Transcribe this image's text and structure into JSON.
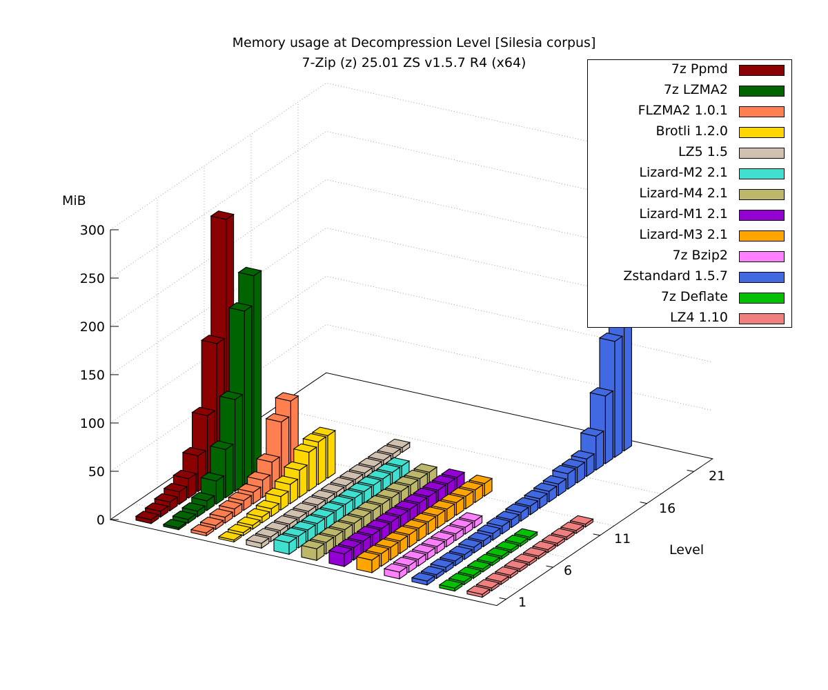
{
  "chart_data": {
    "type": "bar3d",
    "title": "Memory usage at Decompression Level [Silesia corpus]",
    "subtitle": "7-Zip (z) 25.01 ZS v1.5.7 R4 (x64)",
    "zlabel": "MiB",
    "ylabel": "Level",
    "zlim": [
      0,
      300
    ],
    "z_ticks": [
      0,
      50,
      100,
      150,
      200,
      250,
      300
    ],
    "level_ticks": [
      1,
      6,
      11,
      16,
      21
    ],
    "grid": true,
    "legend_position": "top-right",
    "series": [
      {
        "name": "7z Ppmd",
        "color": "#8b0000",
        "levels": [
          1,
          2,
          3,
          4,
          5,
          6,
          7,
          8,
          9
        ],
        "values": [
          4,
          6,
          9,
          13,
          20,
          37,
          72,
          140,
          262
        ]
      },
      {
        "name": "7z LZMA2",
        "color": "#006400",
        "levels": [
          1,
          2,
          3,
          4,
          5,
          6,
          7,
          8,
          9
        ],
        "values": [
          2,
          4,
          6,
          10,
          24,
          50,
          95,
          180,
          210
        ]
      },
      {
        "name": "FLZMA2 1.0.1",
        "color": "#ff7f50",
        "levels": [
          1,
          2,
          3,
          4,
          5,
          6,
          7,
          8,
          9,
          10
        ],
        "values": [
          3,
          4,
          6,
          8,
          10,
          12,
          18,
          30,
          65,
          80
        ]
      },
      {
        "name": "Brotli 1.2.0",
        "color": "#ffd700",
        "levels": [
          1,
          2,
          3,
          4,
          5,
          6,
          7,
          8,
          9,
          10,
          11
        ],
        "values": [
          2,
          3,
          4,
          6,
          8,
          14,
          20,
          28,
          40,
          44,
          44
        ]
      },
      {
        "name": "LZ5 1.5",
        "color": "#d0c0b0",
        "levels": [
          1,
          2,
          3,
          4,
          5,
          6,
          7,
          8,
          9,
          10,
          11,
          12,
          13,
          14,
          15,
          16
        ],
        "values": [
          5,
          5,
          5,
          5,
          5,
          5,
          5,
          5,
          5,
          5,
          5,
          5,
          5,
          5,
          5,
          5
        ]
      },
      {
        "name": "Lizard-M2 2.1",
        "color": "#40e0d0",
        "levels": [
          1,
          2,
          3,
          4,
          5,
          6,
          7,
          8,
          9,
          10,
          11,
          12,
          13
        ],
        "values": [
          12,
          12,
          12,
          12,
          12,
          12,
          12,
          12,
          12,
          12,
          12,
          12,
          12
        ]
      },
      {
        "name": "Lizard-M4 2.1",
        "color": "#bdb76b",
        "levels": [
          1,
          2,
          3,
          4,
          5,
          6,
          7,
          8,
          9,
          10,
          11,
          12,
          13
        ],
        "values": [
          12,
          12,
          12,
          12,
          12,
          12,
          12,
          12,
          12,
          12,
          12,
          12,
          12
        ]
      },
      {
        "name": "Lizard-M1 2.1",
        "color": "#9400d3",
        "levels": [
          1,
          2,
          3,
          4,
          5,
          6,
          7,
          8,
          9,
          10,
          11,
          12,
          13
        ],
        "values": [
          13,
          13,
          13,
          13,
          13,
          13,
          13,
          13,
          13,
          13,
          13,
          13,
          13
        ]
      },
      {
        "name": "Lizard-M3 2.1",
        "color": "#ffa500",
        "levels": [
          1,
          2,
          3,
          4,
          5,
          6,
          7,
          8,
          9,
          10,
          11,
          12,
          13
        ],
        "values": [
          13,
          13,
          13,
          13,
          13,
          13,
          13,
          13,
          13,
          13,
          13,
          13,
          13
        ]
      },
      {
        "name": "7z Bzip2",
        "color": "#ff80ff",
        "levels": [
          1,
          2,
          3,
          4,
          5,
          6,
          7,
          8,
          9
        ],
        "values": [
          7,
          7,
          7,
          7,
          7,
          7,
          7,
          7,
          7
        ]
      },
      {
        "name": "Zstandard 1.5.7",
        "color": "#4169e1",
        "levels": [
          1,
          2,
          3,
          4,
          5,
          6,
          7,
          8,
          9,
          10,
          11,
          12,
          13,
          14,
          15,
          16,
          17,
          18,
          19,
          20,
          21,
          22
        ],
        "values": [
          4,
          4,
          5,
          5,
          5,
          6,
          6,
          7,
          8,
          8,
          9,
          9,
          10,
          11,
          12,
          16,
          16,
          18,
          35,
          70,
          120,
          205
        ]
      },
      {
        "name": "7z Deflate",
        "color": "#00c000",
        "levels": [
          1,
          2,
          3,
          4,
          5,
          6,
          7,
          8,
          9
        ],
        "values": [
          3,
          3,
          3,
          3,
          3,
          3,
          3,
          3,
          3
        ]
      },
      {
        "name": "LZ4 1.10",
        "color": "#f08080",
        "levels": [
          1,
          2,
          3,
          4,
          5,
          6,
          7,
          8,
          9,
          10,
          11,
          12
        ],
        "values": [
          3,
          3,
          3,
          3,
          3,
          3,
          3,
          3,
          3,
          3,
          3,
          3
        ]
      }
    ]
  },
  "title": {
    "line1": "Memory usage at Decompression Level [Silesia corpus]",
    "line2": "7-Zip (z) 25.01 ZS v1.5.7 R4 (x64)"
  },
  "axes": {
    "z_label": "MiB",
    "level_label": "Level",
    "z_ticks": [
      "300",
      "250",
      "200",
      "150",
      "100",
      "50",
      "0"
    ],
    "level_ticks": [
      "1",
      "6",
      "11",
      "16",
      "21"
    ]
  },
  "legend": [
    {
      "label": "7z Ppmd",
      "color": "#8b0000"
    },
    {
      "label": "7z LZMA2",
      "color": "#006400"
    },
    {
      "label": "FLZMA2 1.0.1",
      "color": "#ff7f50"
    },
    {
      "label": "Brotli 1.2.0",
      "color": "#ffd700"
    },
    {
      "label": "LZ5 1.5",
      "color": "#d0c0b0"
    },
    {
      "label": "Lizard-M2 2.1",
      "color": "#40e0d0"
    },
    {
      "label": "Lizard-M4 2.1",
      "color": "#bdb76b"
    },
    {
      "label": "Lizard-M1 2.1",
      "color": "#9400d3"
    },
    {
      "label": "Lizard-M3 2.1",
      "color": "#ffa500"
    },
    {
      "label": "7z Bzip2",
      "color": "#ff80ff"
    },
    {
      "label": "Zstandard 1.5.7",
      "color": "#4169e1"
    },
    {
      "label": "7z Deflate",
      "color": "#00c000"
    },
    {
      "label": "LZ4 1.10",
      "color": "#f08080"
    }
  ]
}
